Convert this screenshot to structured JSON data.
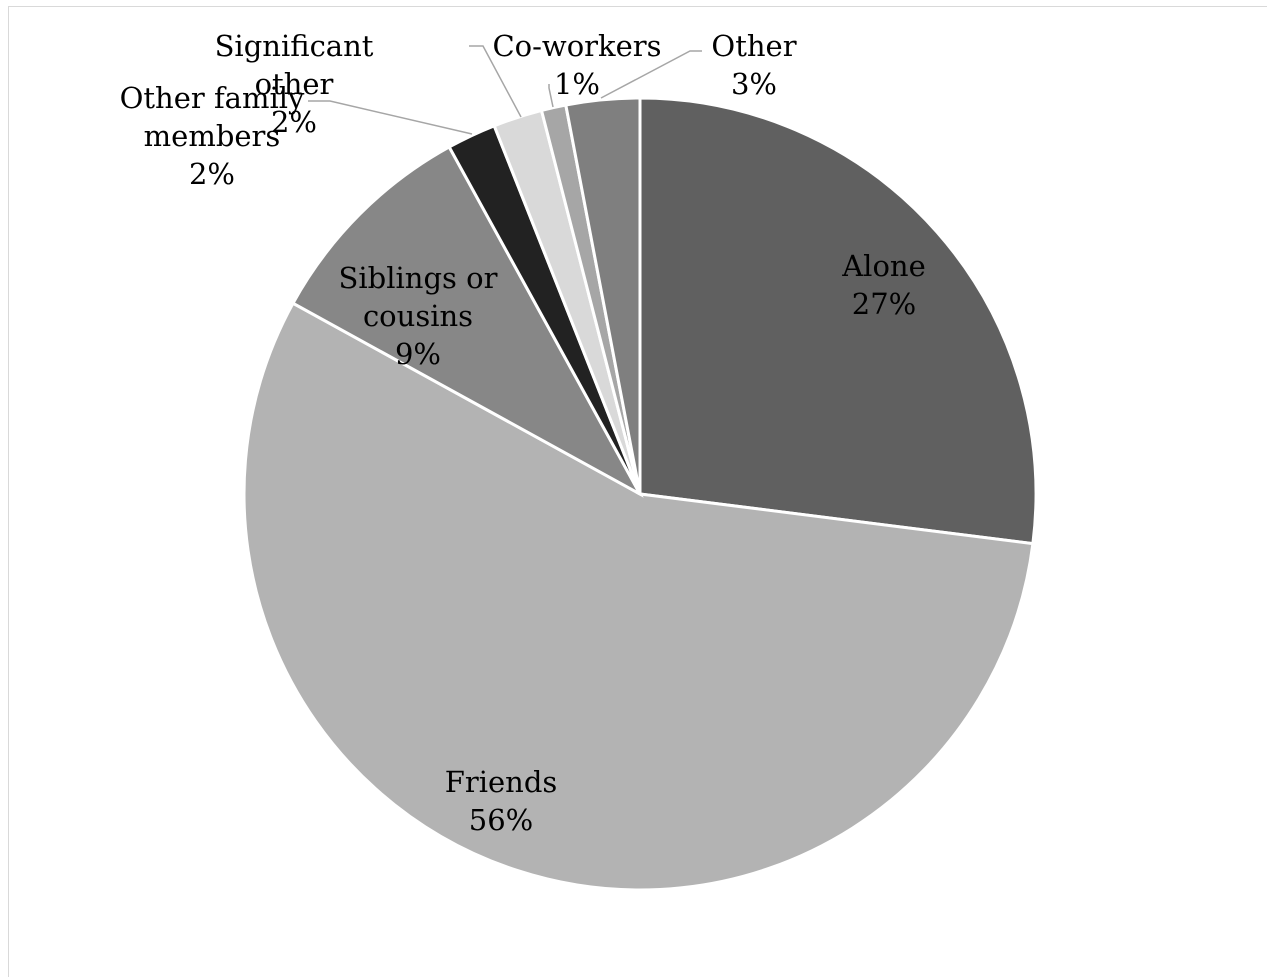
{
  "chart_data": {
    "type": "pie",
    "title": "",
    "start_angle_deg": 0,
    "direction": "clockwise",
    "slices": [
      {
        "label": "Alone",
        "value": 27,
        "value_label": "27%",
        "color": "#606060"
      },
      {
        "label": "Friends",
        "value": 56,
        "value_label": "56%",
        "color": "#b3b3b3"
      },
      {
        "label": "Siblings or cousins",
        "label_lines": [
          "Siblings or",
          "cousins"
        ],
        "value": 9,
        "value_label": "9%",
        "color": "#878787"
      },
      {
        "label": "Other family members",
        "label_lines": [
          "Other family",
          "members"
        ],
        "value": 2,
        "value_label": "2%",
        "color": "#222222"
      },
      {
        "label": "Significant other",
        "label_lines": [
          "Significant",
          "other"
        ],
        "value": 2,
        "value_label": "2%",
        "color": "#d9d9d9"
      },
      {
        "label": "Co-workers",
        "value": 1,
        "value_label": "1%",
        "color": "#a6a6a6"
      },
      {
        "label": "Other",
        "value": 3,
        "value_label": "3%",
        "color": "#7f7f7f"
      }
    ]
  }
}
